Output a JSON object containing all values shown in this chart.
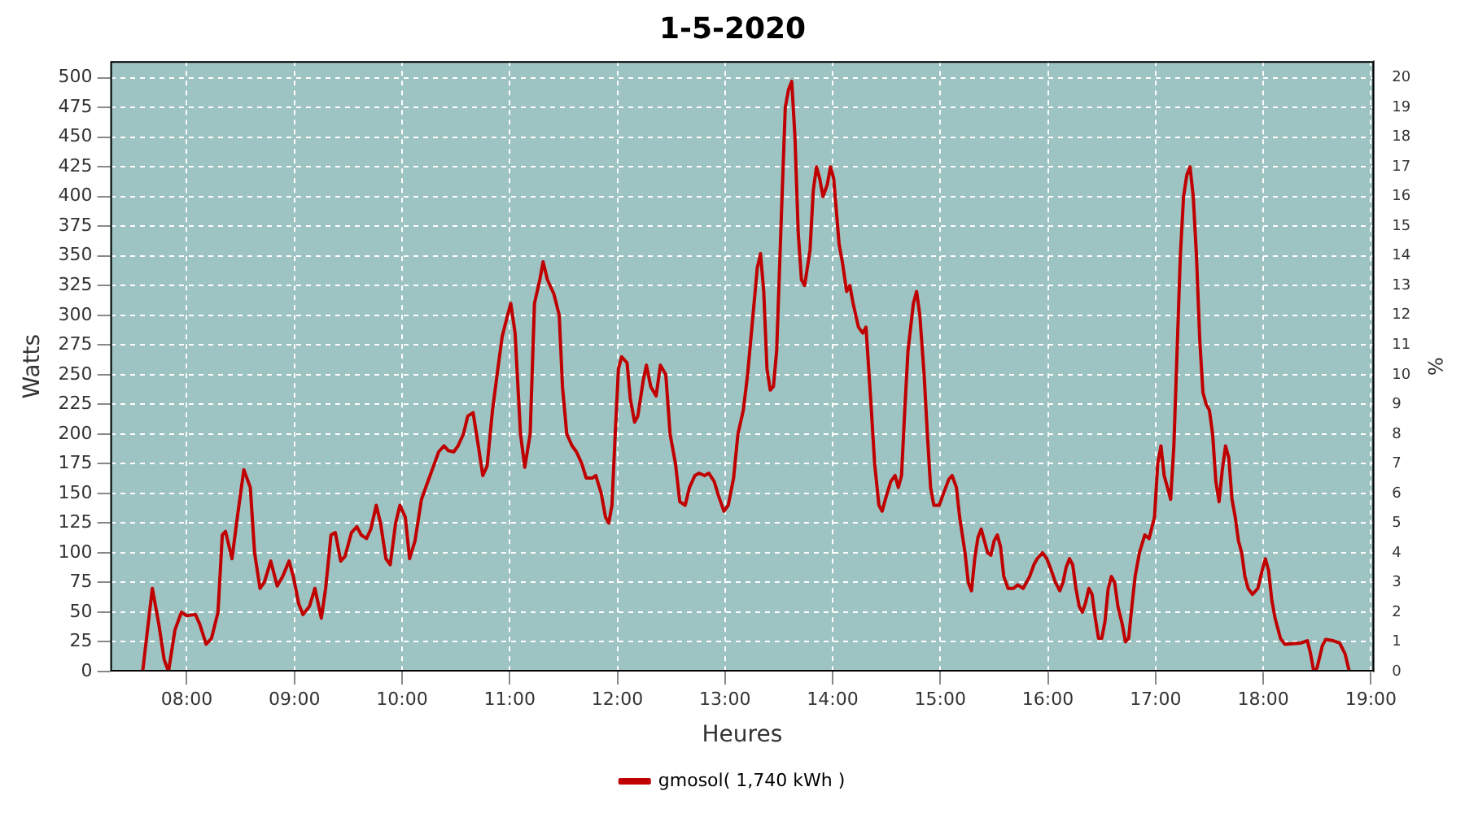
{
  "chart_data": {
    "type": "line",
    "title": "1-5-2020",
    "xlabel": "Heures",
    "ylabel": "Watts",
    "y2label": "%",
    "xlim": [
      7.29,
      19.03
    ],
    "xticks": [
      {
        "value": 8,
        "label": "08:00"
      },
      {
        "value": 9,
        "label": "09:00"
      },
      {
        "value": 10,
        "label": "10:00"
      },
      {
        "value": 11,
        "label": "11:00"
      },
      {
        "value": 12,
        "label": "12:00"
      },
      {
        "value": 13,
        "label": "13:00"
      },
      {
        "value": 14,
        "label": "14:00"
      },
      {
        "value": 15,
        "label": "15:00"
      },
      {
        "value": 16,
        "label": "16:00"
      },
      {
        "value": 17,
        "label": "17:00"
      },
      {
        "value": 18,
        "label": "18:00"
      },
      {
        "value": 19,
        "label": "19:00"
      }
    ],
    "ylim": [
      0,
      514
    ],
    "yticks": [
      0,
      25,
      50,
      75,
      100,
      125,
      150,
      175,
      200,
      225,
      250,
      275,
      300,
      325,
      350,
      375,
      400,
      425,
      450,
      475,
      500
    ],
    "y2lim": [
      0,
      20.56
    ],
    "y2ticks": [
      0,
      1,
      2,
      3,
      4,
      5,
      6,
      7,
      8,
      9,
      10,
      11,
      12,
      13,
      14,
      15,
      16,
      17,
      18,
      19,
      20
    ],
    "grid": true,
    "legend": "bottom",
    "marker": "none",
    "line_style": "solid",
    "series": [
      {
        "name": "gmosol( 1,740 kWh )",
        "color": "#c00000",
        "x": [
          7.52,
          7.59,
          7.68,
          7.74,
          7.79,
          7.83,
          7.89,
          7.95,
          8.0,
          8.08,
          8.12,
          8.18,
          8.23,
          8.29,
          8.33,
          8.36,
          8.42,
          8.47,
          8.53,
          8.59,
          8.63,
          8.68,
          8.72,
          8.78,
          8.84,
          8.89,
          8.95,
          8.99,
          9.04,
          9.08,
          9.14,
          9.19,
          9.25,
          9.29,
          9.34,
          9.38,
          9.43,
          9.47,
          9.53,
          9.58,
          9.62,
          9.67,
          9.71,
          9.76,
          9.8,
          9.85,
          9.89,
          9.94,
          9.98,
          10.03,
          10.07,
          10.12,
          10.18,
          10.24,
          10.3,
          10.34,
          10.39,
          10.43,
          10.48,
          10.52,
          10.57,
          10.61,
          10.66,
          10.7,
          10.75,
          10.79,
          10.84,
          10.89,
          10.93,
          10.98,
          11.01,
          11.05,
          11.1,
          11.14,
          11.19,
          11.23,
          11.28,
          11.31,
          11.35,
          11.41,
          11.46,
          11.49,
          11.53,
          11.58,
          11.62,
          11.67,
          11.71,
          11.77,
          11.8,
          11.85,
          11.89,
          11.92,
          11.95,
          11.98,
          12.01,
          12.04,
          12.09,
          12.12,
          12.16,
          12.19,
          12.24,
          12.27,
          12.31,
          12.36,
          12.4,
          12.45,
          12.49,
          12.54,
          12.58,
          12.63,
          12.67,
          12.72,
          12.76,
          12.81,
          12.85,
          12.9,
          12.94,
          12.99,
          13.03,
          13.08,
          13.12,
          13.17,
          13.21,
          13.26,
          13.3,
          13.33,
          13.36,
          13.39,
          13.42,
          13.45,
          13.48,
          13.53,
          13.56,
          13.59,
          13.62,
          13.65,
          13.68,
          13.71,
          13.74,
          13.79,
          13.82,
          13.85,
          13.88,
          13.91,
          13.95,
          13.98,
          14.01,
          14.06,
          14.09,
          14.13,
          14.16,
          14.19,
          14.24,
          14.28,
          14.31,
          14.36,
          14.39,
          14.43,
          14.46,
          14.49,
          14.54,
          14.58,
          14.61,
          14.64,
          14.67,
          14.7,
          14.75,
          14.78,
          14.81,
          14.85,
          14.88,
          14.91,
          14.94,
          14.99,
          15.03,
          15.08,
          15.11,
          15.15,
          15.18,
          15.23,
          15.26,
          15.29,
          15.32,
          15.35,
          15.38,
          15.41,
          15.44,
          15.47,
          15.5,
          15.53,
          15.56,
          15.59,
          15.63,
          15.68,
          15.72,
          15.77,
          15.8,
          15.83,
          15.87,
          15.9,
          15.95,
          15.99,
          16.02,
          16.07,
          16.11,
          16.14,
          16.17,
          16.2,
          16.23,
          16.26,
          16.29,
          16.32,
          16.35,
          16.38,
          16.41,
          16.44,
          16.47,
          16.5,
          16.53,
          16.56,
          16.59,
          16.62,
          16.65,
          16.69,
          16.72,
          16.75,
          16.78,
          16.81,
          16.85,
          16.9,
          16.94,
          16.99,
          17.02,
          17.05,
          17.08,
          17.11,
          17.14,
          17.17,
          17.2,
          17.23,
          17.26,
          17.29,
          17.32,
          17.35,
          17.38,
          17.41,
          17.44,
          17.47,
          17.5,
          17.53,
          17.56,
          17.59,
          17.62,
          17.65,
          17.68,
          17.71,
          17.74,
          17.77,
          17.8,
          17.83,
          17.86,
          17.9,
          17.95,
          17.99,
          18.02,
          18.05,
          18.08,
          18.11,
          18.16,
          18.2,
          18.35,
          18.41,
          18.44,
          18.47,
          18.5,
          18.55,
          18.58,
          18.65,
          18.71,
          18.76,
          18.8
        ],
        "values": [
          0,
          0,
          70,
          40,
          10,
          0,
          35,
          50,
          47,
          48,
          40,
          23,
          28,
          50,
          115,
          118,
          95,
          130,
          170,
          155,
          100,
          70,
          75,
          93,
          72,
          80,
          93,
          80,
          57,
          48,
          55,
          70,
          45,
          70,
          115,
          117,
          93,
          97,
          117,
          122,
          115,
          112,
          120,
          140,
          125,
          95,
          90,
          125,
          140,
          130,
          95,
          110,
          145,
          160,
          175,
          185,
          190,
          186,
          185,
          190,
          200,
          215,
          218,
          195,
          165,
          173,
          220,
          255,
          282,
          300,
          310,
          285,
          200,
          172,
          200,
          310,
          330,
          345,
          330,
          318,
          300,
          240,
          200,
          190,
          185,
          175,
          163,
          163,
          165,
          150,
          130,
          125,
          140,
          200,
          255,
          265,
          260,
          230,
          210,
          215,
          245,
          258,
          240,
          232,
          258,
          250,
          200,
          175,
          143,
          140,
          155,
          165,
          167,
          165,
          167,
          160,
          148,
          135,
          140,
          163,
          200,
          220,
          250,
          300,
          340,
          352,
          320,
          255,
          237,
          240,
          270,
          400,
          475,
          490,
          497,
          450,
          370,
          330,
          325,
          355,
          405,
          425,
          415,
          400,
          410,
          425,
          415,
          360,
          345,
          320,
          325,
          310,
          290,
          285,
          290,
          220,
          175,
          140,
          135,
          145,
          160,
          165,
          155,
          165,
          220,
          270,
          310,
          320,
          300,
          250,
          200,
          155,
          140,
          140,
          150,
          162,
          165,
          155,
          130,
          100,
          75,
          68,
          95,
          113,
          120,
          110,
          100,
          98,
          110,
          115,
          105,
          80,
          70,
          70,
          73,
          70,
          75,
          80,
          90,
          95,
          100,
          95,
          88,
          75,
          68,
          75,
          88,
          95,
          90,
          70,
          55,
          50,
          58,
          70,
          65,
          45,
          28,
          28,
          42,
          70,
          80,
          75,
          55,
          40,
          25,
          28,
          55,
          80,
          100,
          115,
          112,
          130,
          175,
          190,
          165,
          155,
          145,
          190,
          270,
          350,
          400,
          418,
          425,
          400,
          350,
          280,
          235,
          225,
          220,
          200,
          160,
          143,
          170,
          190,
          180,
          145,
          130,
          110,
          100,
          80,
          70,
          65,
          70,
          85,
          95,
          85,
          60,
          45,
          28,
          23,
          24,
          26,
          15,
          0,
          3,
          22,
          27,
          26,
          24,
          15,
          0
        ]
      }
    ]
  }
}
